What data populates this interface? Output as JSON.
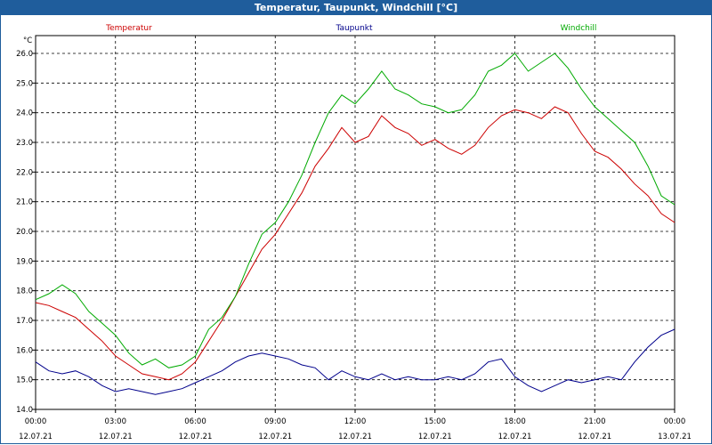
{
  "window": {
    "title": "Temperatur, Taupunkt, Windchill [°C]"
  },
  "chart_data": {
    "type": "line",
    "title": "Temperatur, Taupunkt, Windchill [°C]",
    "ylabel": "°C",
    "ylim": [
      14.0,
      26.6
    ],
    "xlim": [
      0,
      24
    ],
    "grid": true,
    "legend_placement": "top",
    "y_ticks": [
      "14.0",
      "15.0",
      "16.0",
      "17.0",
      "18.0",
      "19.0",
      "20.0",
      "21.0",
      "22.0",
      "23.0",
      "24.0",
      "25.0",
      "26.0"
    ],
    "x_ticks": [
      {
        "x": 0,
        "time": "00:00",
        "date": "12.07.21"
      },
      {
        "x": 3,
        "time": "03:00",
        "date": "12.07.21"
      },
      {
        "x": 6,
        "time": "06:00",
        "date": "12.07.21"
      },
      {
        "x": 9,
        "time": "09:00",
        "date": "12.07.21"
      },
      {
        "x": 12,
        "time": "12:00",
        "date": "12.07.21"
      },
      {
        "x": 15,
        "time": "15:00",
        "date": "12.07.21"
      },
      {
        "x": 18,
        "time": "18:00",
        "date": "12.07.21"
      },
      {
        "x": 21,
        "time": "21:00",
        "date": "12.07.21"
      },
      {
        "x": 24,
        "time": "00:00",
        "date": "13.07.21"
      }
    ],
    "series": [
      {
        "name": "Temperatur",
        "color": "#cc0000",
        "x": [
          0,
          0.5,
          1,
          1.5,
          2,
          2.5,
          3,
          3.5,
          4,
          4.5,
          5,
          5.5,
          6,
          6.5,
          7,
          7.5,
          8,
          8.5,
          9,
          9.5,
          10,
          10.5,
          11,
          11.5,
          12,
          12.5,
          13,
          13.5,
          14,
          14.5,
          15,
          15.5,
          16,
          16.5,
          17,
          17.5,
          18,
          18.5,
          19,
          19.5,
          20,
          20.5,
          21,
          21.5,
          22,
          22.5,
          23,
          23.5,
          24
        ],
        "values": [
          17.6,
          17.5,
          17.3,
          17.1,
          16.7,
          16.3,
          15.8,
          15.5,
          15.2,
          15.1,
          15.0,
          15.2,
          15.6,
          16.3,
          17.0,
          17.8,
          18.6,
          19.4,
          19.9,
          20.6,
          21.3,
          22.2,
          22.8,
          23.5,
          23.0,
          23.2,
          23.9,
          23.5,
          23.3,
          22.9,
          23.1,
          22.8,
          22.6,
          22.9,
          23.5,
          23.9,
          24.1,
          24.0,
          23.8,
          24.2,
          24.0,
          23.3,
          22.7,
          22.5,
          22.1,
          21.6,
          21.2,
          20.6,
          20.3
        ]
      },
      {
        "name": "Taupunkt",
        "color": "#00008b",
        "x": [
          0,
          0.5,
          1,
          1.5,
          2,
          2.5,
          3,
          3.5,
          4,
          4.5,
          5,
          5.5,
          6,
          6.5,
          7,
          7.5,
          8,
          8.5,
          9,
          9.5,
          10,
          10.5,
          11,
          11.5,
          12,
          12.5,
          13,
          13.5,
          14,
          14.5,
          15,
          15.5,
          16,
          16.5,
          17,
          17.5,
          18,
          18.5,
          19,
          19.5,
          20,
          20.5,
          21,
          21.5,
          22,
          22.5,
          23,
          23.5,
          24
        ],
        "values": [
          15.6,
          15.3,
          15.2,
          15.3,
          15.1,
          14.8,
          14.6,
          14.7,
          14.6,
          14.5,
          14.6,
          14.7,
          14.9,
          15.1,
          15.3,
          15.6,
          15.8,
          15.9,
          15.8,
          15.7,
          15.5,
          15.4,
          15.0,
          15.3,
          15.1,
          15.0,
          15.2,
          15.0,
          15.1,
          15.0,
          15.0,
          15.1,
          15.0,
          15.2,
          15.6,
          15.7,
          15.1,
          14.8,
          14.6,
          14.8,
          15.0,
          14.9,
          15.0,
          15.1,
          15.0,
          15.6,
          16.1,
          16.5,
          16.7
        ]
      },
      {
        "name": "Windchill",
        "color": "#00aa00",
        "x": [
          0,
          0.5,
          1,
          1.5,
          2,
          2.5,
          3,
          3.5,
          4,
          4.5,
          5,
          5.5,
          6,
          6.5,
          7,
          7.5,
          8,
          8.5,
          9,
          9.5,
          10,
          10.5,
          11,
          11.5,
          12,
          12.5,
          13,
          13.5,
          14,
          14.5,
          15,
          15.5,
          16,
          16.5,
          17,
          17.5,
          18,
          18.5,
          19,
          19.5,
          20,
          20.5,
          21,
          21.5,
          22,
          22.5,
          23,
          23.5,
          24
        ],
        "values": [
          17.7,
          17.9,
          18.2,
          17.9,
          17.3,
          16.9,
          16.5,
          15.9,
          15.5,
          15.7,
          15.4,
          15.5,
          15.8,
          16.7,
          17.1,
          17.8,
          18.9,
          19.9,
          20.3,
          21.0,
          21.9,
          23.0,
          24.0,
          24.6,
          24.3,
          24.8,
          25.4,
          24.8,
          24.6,
          24.3,
          24.2,
          24.0,
          24.1,
          24.6,
          25.4,
          25.6,
          26.0,
          25.4,
          25.7,
          26.0,
          25.5,
          24.8,
          24.2,
          23.8,
          23.4,
          23.0,
          22.2,
          21.2,
          20.9
        ]
      }
    ]
  }
}
